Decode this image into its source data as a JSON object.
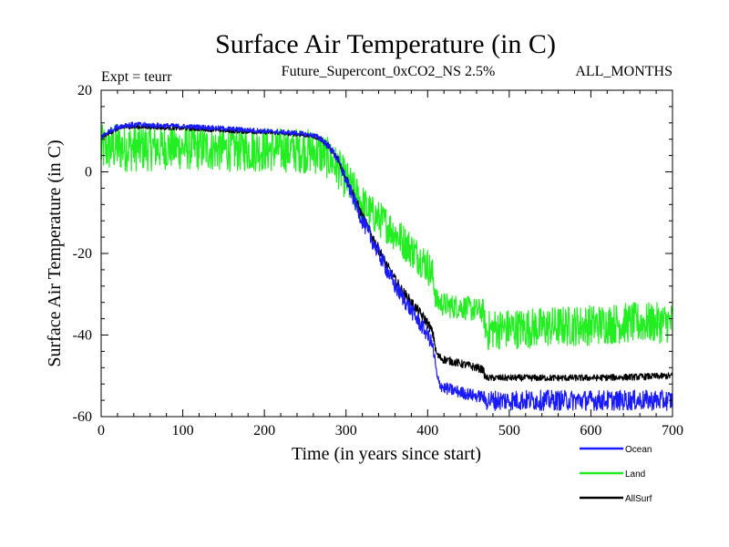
{
  "chart_data": {
    "type": "line",
    "title": "Surface Air Temperature (in C)",
    "experiment_label": "Expt = teurr",
    "subtitle": "Future_Supercont_0xCO2_NS 2.5%",
    "months_label": "ALL_MONTHS",
    "xlabel": "Time (in years since start)",
    "ylabel": "Surface Air Temperature (in C)",
    "xlim": [
      0,
      700
    ],
    "ylim": [
      -60,
      20
    ],
    "xticks": [
      0,
      100,
      200,
      300,
      400,
      500,
      600,
      700
    ],
    "yticks": [
      -60,
      -40,
      -20,
      0,
      20
    ],
    "xtick_labels": [
      "0",
      "100",
      "200",
      "300",
      "400",
      "500",
      "600",
      "700"
    ],
    "ytick_labels": [
      "-60",
      "-40",
      "-20",
      "0",
      "20"
    ],
    "grid": false,
    "legend_position": "bottom-right",
    "series": [
      {
        "name": "Ocean",
        "color": "#1a1aff",
        "x": [
          0,
          10,
          20,
          30,
          40,
          50,
          80,
          120,
          160,
          200,
          240,
          260,
          270,
          280,
          290,
          300,
          310,
          320,
          330,
          340,
          350,
          360,
          370,
          380,
          390,
          400,
          405,
          408,
          410,
          412,
          415,
          420,
          430,
          440,
          450,
          460,
          468,
          470,
          472,
          475,
          480,
          500,
          550,
          600,
          650,
          700
        ],
        "y_center": [
          8.5,
          10,
          11,
          11.5,
          11.5,
          11.5,
          11.3,
          11,
          10.5,
          10,
          9.5,
          9,
          8,
          6,
          3,
          -2,
          -7,
          -12,
          -16,
          -20,
          -24,
          -28,
          -31,
          -34,
          -37,
          -40,
          -42,
          -45,
          -48,
          -51,
          -52,
          -53,
          -53.5,
          -54,
          -54.5,
          -55,
          -55,
          -56,
          -56,
          -56,
          -56,
          -56,
          -56,
          -56,
          -56,
          -56
        ],
        "y_half_spread": [
          0.7,
          0.7,
          0.7,
          0.7,
          0.7,
          0.7,
          0.6,
          0.6,
          0.6,
          0.6,
          0.6,
          0.6,
          0.8,
          1,
          1.2,
          1.5,
          1.8,
          2,
          2,
          2,
          2,
          2,
          2,
          2,
          2,
          1.8,
          1.8,
          2,
          1.5,
          1.5,
          1.5,
          1.5,
          1.5,
          1.5,
          1.5,
          1.5,
          1.5,
          2,
          2.5,
          2.5,
          2.5,
          2.5,
          2.5,
          2.5,
          2.5,
          2.5
        ]
      },
      {
        "name": "Land",
        "color": "#22ee22",
        "x": [
          0,
          10,
          20,
          30,
          40,
          50,
          80,
          120,
          160,
          200,
          240,
          260,
          270,
          280,
          290,
          300,
          310,
          320,
          330,
          340,
          350,
          360,
          370,
          380,
          390,
          400,
          405,
          408,
          410,
          412,
          415,
          420,
          430,
          440,
          450,
          460,
          468,
          470,
          472,
          475,
          480,
          500,
          550,
          600,
          650,
          700
        ],
        "y_center": [
          5.5,
          5.8,
          6,
          6,
          6,
          6,
          6,
          5.8,
          5.5,
          5.5,
          5.3,
          5,
          4.5,
          3,
          1,
          -2,
          -5,
          -8,
          -10,
          -11.5,
          -13,
          -15,
          -17,
          -19,
          -21,
          -23,
          -25,
          -27,
          -31,
          -32,
          -32,
          -32.5,
          -33,
          -33,
          -33.5,
          -34,
          -34,
          -37,
          -39,
          -39,
          -38.5,
          -38.5,
          -38,
          -37.5,
          -37,
          -37
        ],
        "y_half_spread": [
          6,
          6,
          6,
          6,
          6,
          6,
          5.5,
          5.5,
          5.5,
          5.5,
          5.5,
          5.5,
          5.5,
          5,
          5,
          5,
          5,
          5,
          4.5,
          4.5,
          4.5,
          4.5,
          4.5,
          4.5,
          4.5,
          4.5,
          4.5,
          4.5,
          3,
          3,
          3,
          3,
          3,
          3,
          3,
          3,
          3,
          3.5,
          5,
          5,
          5,
          5,
          5,
          5,
          5,
          5
        ]
      },
      {
        "name": "AllSurf",
        "color": "#000000",
        "x": [
          0,
          10,
          20,
          30,
          40,
          50,
          80,
          120,
          160,
          200,
          240,
          260,
          270,
          280,
          290,
          300,
          310,
          320,
          330,
          340,
          350,
          360,
          370,
          380,
          390,
          400,
          405,
          408,
          410,
          412,
          415,
          420,
          430,
          440,
          450,
          460,
          468,
          470,
          472,
          475,
          480,
          500,
          550,
          600,
          650,
          700
        ],
        "y_center": [
          8.5,
          9.5,
          10.5,
          11,
          11,
          11,
          10.8,
          10.5,
          10,
          9.7,
          9.2,
          8.7,
          8,
          6,
          3,
          -1.5,
          -6,
          -11,
          -15,
          -19,
          -23,
          -26.5,
          -29.5,
          -32,
          -34.5,
          -37,
          -39,
          -41,
          -44,
          -45,
          -45.5,
          -46,
          -46.5,
          -47,
          -47.5,
          -48,
          -48.5,
          -50,
          -50.5,
          -50.5,
          -50.5,
          -50.5,
          -50.5,
          -50.5,
          -50.3,
          -50
        ],
        "y_half_spread": [
          0.5,
          0.5,
          0.5,
          0.5,
          0.5,
          0.5,
          0.5,
          0.5,
          0.5,
          0.5,
          0.5,
          0.5,
          0.6,
          0.7,
          0.8,
          1,
          1.2,
          1.3,
          1.3,
          1.3,
          1.3,
          1.3,
          1.3,
          1.3,
          1.3,
          1.2,
          1.2,
          1.2,
          1,
          1,
          1,
          1,
          1,
          1,
          1,
          1,
          1,
          1,
          0.8,
          0.8,
          0.8,
          0.8,
          0.8,
          0.8,
          0.8,
          0.8
        ]
      }
    ]
  }
}
